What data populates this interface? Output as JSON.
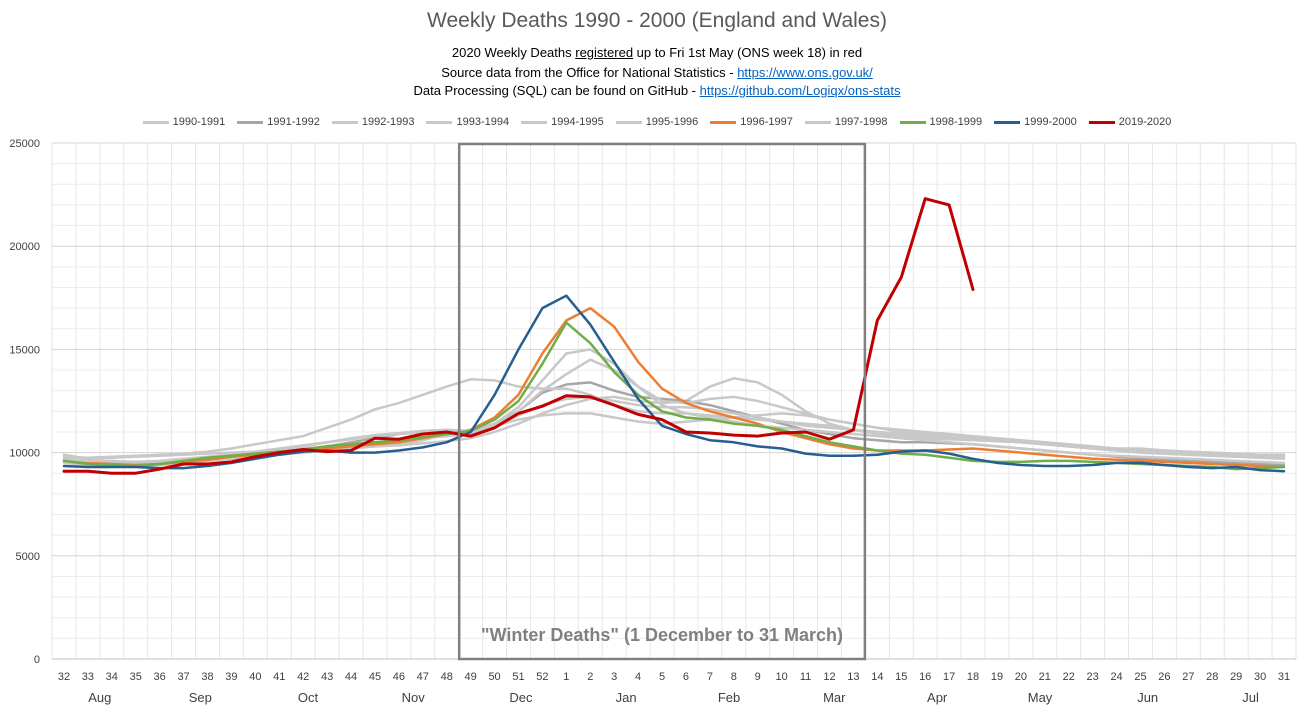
{
  "chart_data": {
    "type": "line",
    "title": "Weekly Deaths 1990 - 2000 (England and Wales)",
    "subtitle": {
      "line1_pre": "2020  Weekly Deaths ",
      "line1_underlined": "registered",
      "line1_post": " up to Fri 1st May  (ONS week 18) in red",
      "line2_pre": "Source data from the Office for National Statistics - ",
      "line2_link": "https://www.ons.gov.uk/",
      "line3_pre": "Data Processing (SQL) can be found on GitHub - ",
      "line3_link": "https://github.com/Logiqx/ons-stats"
    },
    "categories": [
      "32",
      "33",
      "34",
      "35",
      "36",
      "37",
      "38",
      "39",
      "40",
      "41",
      "42",
      "43",
      "44",
      "45",
      "46",
      "47",
      "48",
      "49",
      "50",
      "51",
      "52",
      "1",
      "2",
      "3",
      "4",
      "5",
      "6",
      "7",
      "8",
      "9",
      "10",
      "11",
      "12",
      "13",
      "14",
      "15",
      "16",
      "17",
      "18",
      "19",
      "20",
      "21",
      "22",
      "23",
      "24",
      "25",
      "26",
      "27",
      "28",
      "29",
      "30",
      "31"
    ],
    "months": [
      {
        "label": "Aug",
        "week_pos": 33.5
      },
      {
        "label": "Sep",
        "week_pos": 37.7
      },
      {
        "label": "Oct",
        "week_pos": 42.2
      },
      {
        "label": "Nov",
        "week_pos": 46.6
      },
      {
        "label": "Dec",
        "week_pos": 51.1
      },
      {
        "label": "Jan",
        "week_pos": 55.5
      },
      {
        "label": "Feb",
        "week_pos": 59.8
      },
      {
        "label": "Mar",
        "week_pos": 64.2
      },
      {
        "label": "Apr",
        "week_pos": 68.5
      },
      {
        "label": "May",
        "week_pos": 72.8
      },
      {
        "label": "Jun",
        "week_pos": 77.3
      },
      {
        "label": "Jul",
        "week_pos": 81.6
      }
    ],
    "ylim": [
      0,
      25000
    ],
    "yticks": [
      0,
      5000,
      10000,
      15000,
      20000,
      25000
    ],
    "grid": true,
    "legend_position": "top",
    "annotation": {
      "text": "\"Winter Deaths\" (1 December to 31 March)",
      "from_week": "49",
      "to_week": "13"
    },
    "series": [
      {
        "name": "1990-1991",
        "color": "#c8c8c8",
        "width": 2.5,
        "values": [
          9900,
          9700,
          9750,
          9800,
          9850,
          9900,
          9950,
          10000,
          10050,
          10100,
          10150,
          10200,
          10250,
          10300,
          10350,
          10450,
          10550,
          10700,
          11000,
          11400,
          11900,
          12300,
          12600,
          12700,
          12500,
          12400,
          12500,
          13200,
          13600,
          13400,
          12800,
          12000,
          11400,
          11100,
          10900,
          10800,
          10700,
          10650,
          10600,
          10550,
          10500,
          10400,
          10300,
          10200,
          10100,
          10000,
          9950,
          9900,
          9850,
          9800,
          9850,
          9900
        ]
      },
      {
        "name": "1991-1992",
        "color": "#a6a6a6",
        "width": 2.5,
        "values": [
          9600,
          9500,
          9500,
          9450,
          9500,
          9600,
          9650,
          9750,
          9900,
          10000,
          10100,
          10300,
          10500,
          10700,
          10900,
          11000,
          11100,
          11000,
          11400,
          12000,
          12900,
          13300,
          13400,
          13000,
          12700,
          12600,
          12500,
          12300,
          12000,
          11700,
          11400,
          11100,
          10900,
          10700,
          10600,
          10500,
          10500,
          10450,
          10400,
          10300,
          10200,
          10100,
          10000,
          9900,
          9800,
          9700,
          9650,
          9600,
          9550,
          9500,
          9450,
          9400
        ]
      },
      {
        "name": "1992-1993",
        "color": "#c8c8c8",
        "width": 2.5,
        "values": [
          9700,
          9600,
          9550,
          9500,
          9550,
          9600,
          9700,
          9800,
          9950,
          10100,
          10300,
          10500,
          10700,
          10850,
          10950,
          11050,
          11100,
          11050,
          11300,
          11800,
          12300,
          12600,
          12700,
          12500,
          12300,
          12200,
          12200,
          12100,
          11900,
          11700,
          11500,
          11300,
          11200,
          11100,
          11000,
          10900,
          10850,
          10800,
          10700,
          10600,
          10500,
          10400,
          10300,
          10200,
          10100,
          10000,
          9950,
          9900,
          9850,
          9800,
          9750,
          9700
        ]
      },
      {
        "name": "1993-1994",
        "color": "#c8c8c8",
        "width": 2.5,
        "values": [
          9800,
          9750,
          9800,
          9850,
          9900,
          9950,
          10050,
          10200,
          10400,
          10600,
          10800,
          11200,
          11600,
          12100,
          12400,
          12800,
          13200,
          13550,
          13500,
          13200,
          13100,
          13100,
          12800,
          12300,
          12000,
          11900,
          11900,
          11800,
          11700,
          11600,
          11500,
          11400,
          11300,
          11100,
          11000,
          10900,
          10800,
          10750,
          10700,
          10600,
          10500,
          10400,
          10300,
          10200,
          10100,
          10100,
          10050,
          10000,
          9950,
          9900,
          9900,
          9900
        ]
      },
      {
        "name": "1994-1995",
        "color": "#c8c8c8",
        "width": 2.5,
        "values": [
          9500,
          9400,
          9400,
          9350,
          9400,
          9500,
          9600,
          9700,
          9800,
          9900,
          10000,
          10100,
          10200,
          10300,
          10400,
          10600,
          10900,
          11100,
          11300,
          11600,
          11800,
          11900,
          11900,
          11700,
          11500,
          11400,
          11500,
          11600,
          11700,
          11800,
          11900,
          11800,
          11600,
          11400,
          11200,
          11000,
          10900,
          10800,
          10700,
          10600,
          10500,
          10400,
          10300,
          10250,
          10200,
          10200,
          10100,
          10000,
          9900,
          9850,
          9800,
          9750
        ]
      },
      {
        "name": "1995-1996",
        "color": "#c8c8c8",
        "width": 2.5,
        "values": [
          9600,
          9500,
          9500,
          9450,
          9500,
          9600,
          9700,
          9800,
          9950,
          10100,
          10200,
          10300,
          10400,
          10500,
          10600,
          10700,
          10800,
          10900,
          11300,
          12000,
          13000,
          13800,
          14500,
          14000,
          13200,
          12500,
          12400,
          12600,
          12700,
          12500,
          12200,
          11900,
          11600,
          11400,
          11200,
          11100,
          11000,
          10900,
          10800,
          10700,
          10600,
          10500,
          10400,
          10300,
          10200,
          10150,
          10100,
          10050,
          10000,
          9950,
          9900,
          9850
        ]
      },
      {
        "name": "1996-1997",
        "color": "#ed7d31",
        "width": 2.5,
        "values": [
          9600,
          9500,
          9450,
          9400,
          9450,
          9550,
          9650,
          9800,
          9900,
          10000,
          10100,
          10200,
          10300,
          10400,
          10500,
          10700,
          10900,
          11100,
          11700,
          12800,
          14800,
          16400,
          17000,
          16100,
          14400,
          13100,
          12400,
          12000,
          11700,
          11400,
          11000,
          10700,
          10400,
          10200,
          10100,
          10100,
          10100,
          10150,
          10200,
          10100,
          10000,
          9900,
          9800,
          9700,
          9650,
          9600,
          9550,
          9500,
          9450,
          9400,
          9350,
          9300
        ]
      },
      {
        "name": "1997-1998",
        "color": "#c8c8c8",
        "width": 2.5,
        "values": [
          9700,
          9600,
          9600,
          9550,
          9600,
          9700,
          9800,
          9900,
          10050,
          10200,
          10350,
          10500,
          10650,
          10800,
          10900,
          11000,
          11100,
          11050,
          11400,
          12200,
          13500,
          14800,
          15000,
          14300,
          13200,
          12300,
          11900,
          11700,
          11500,
          11300,
          11200,
          11100,
          11000,
          10900,
          10800,
          10700,
          10600,
          10500,
          10400,
          10300,
          10200,
          10100,
          10000,
          9900,
          9850,
          9800,
          9750,
          9700,
          9650,
          9600,
          9550,
          9500
        ]
      },
      {
        "name": "1998-1999",
        "color": "#70ad47",
        "width": 2.5,
        "values": [
          9600,
          9450,
          9400,
          9350,
          9450,
          9600,
          9750,
          9850,
          9950,
          10050,
          10150,
          10300,
          10400,
          10500,
          10600,
          10750,
          10900,
          11050,
          11600,
          12500,
          14300,
          16300,
          15300,
          13900,
          12800,
          12000,
          11700,
          11600,
          11400,
          11300,
          11100,
          10800,
          10500,
          10300,
          10100,
          9950,
          9900,
          9750,
          9600,
          9550,
          9550,
          9600,
          9600,
          9550,
          9500,
          9450,
          9400,
          9350,
          9300,
          9200,
          9250,
          9300
        ]
      },
      {
        "name": "1999-2000",
        "color": "#255e91",
        "width": 2.5,
        "values": [
          9350,
          9300,
          9300,
          9300,
          9250,
          9250,
          9350,
          9500,
          9700,
          9900,
          10050,
          10100,
          10000,
          10000,
          10100,
          10250,
          10500,
          11000,
          12800,
          15000,
          17000,
          17600,
          16200,
          14400,
          12600,
          11300,
          10900,
          10600,
          10500,
          10300,
          10200,
          9950,
          9850,
          9850,
          9900,
          10050,
          10100,
          9950,
          9700,
          9500,
          9400,
          9350,
          9350,
          9400,
          9500,
          9500,
          9400,
          9300,
          9250,
          9300,
          9150,
          9100
        ]
      },
      {
        "name": "2019-2020",
        "color": "#c00000",
        "width": 3,
        "values": [
          9100,
          9100,
          9000,
          9000,
          9200,
          9450,
          9450,
          9550,
          9800,
          10000,
          10150,
          10050,
          10100,
          10700,
          10650,
          10900,
          11000,
          10800,
          11200,
          11900,
          12250,
          12750,
          12700,
          12300,
          11850,
          11600,
          11000,
          10950,
          10850,
          10800,
          10950,
          11000,
          10650,
          11100,
          16400,
          18500,
          22300,
          22000,
          17900,
          null,
          null,
          null,
          null,
          null,
          null,
          null,
          null,
          null,
          null,
          null,
          null,
          null
        ]
      }
    ]
  }
}
